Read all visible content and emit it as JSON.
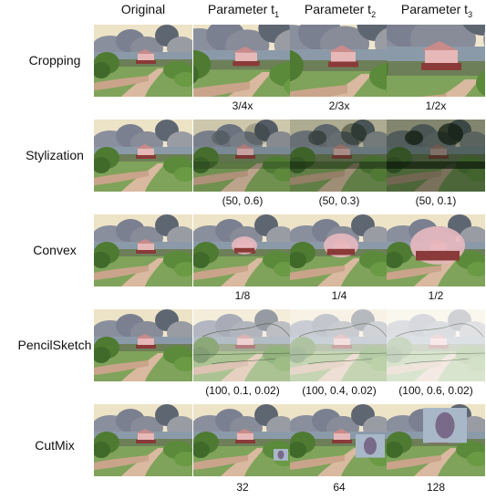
{
  "headers": {
    "original": "Original",
    "param_prefix": "Parameter t",
    "t1": "1",
    "t2": "2",
    "t3": "3"
  },
  "rows": [
    {
      "label": "Cropping",
      "type": "crop",
      "params": [
        "3/4x",
        "2/3x",
        "1/2x"
      ]
    },
    {
      "label": "Stylization",
      "type": "stylize",
      "params": [
        "(50, 0.6)",
        "(50, 0.3)",
        "(50, 0.1)"
      ]
    },
    {
      "label": "Convex",
      "type": "convex",
      "params": [
        "1/8",
        "1/4",
        "1/2"
      ]
    },
    {
      "label": "PencilSketch",
      "type": "pencil",
      "params": [
        "(100, 0.1, 0.02)",
        "(100, 0.4, 0.02)",
        "(100, 0.6, 0.02)"
      ]
    },
    {
      "label": "CutMix",
      "type": "cutmix",
      "params": [
        "32",
        "64",
        "128"
      ]
    }
  ]
}
